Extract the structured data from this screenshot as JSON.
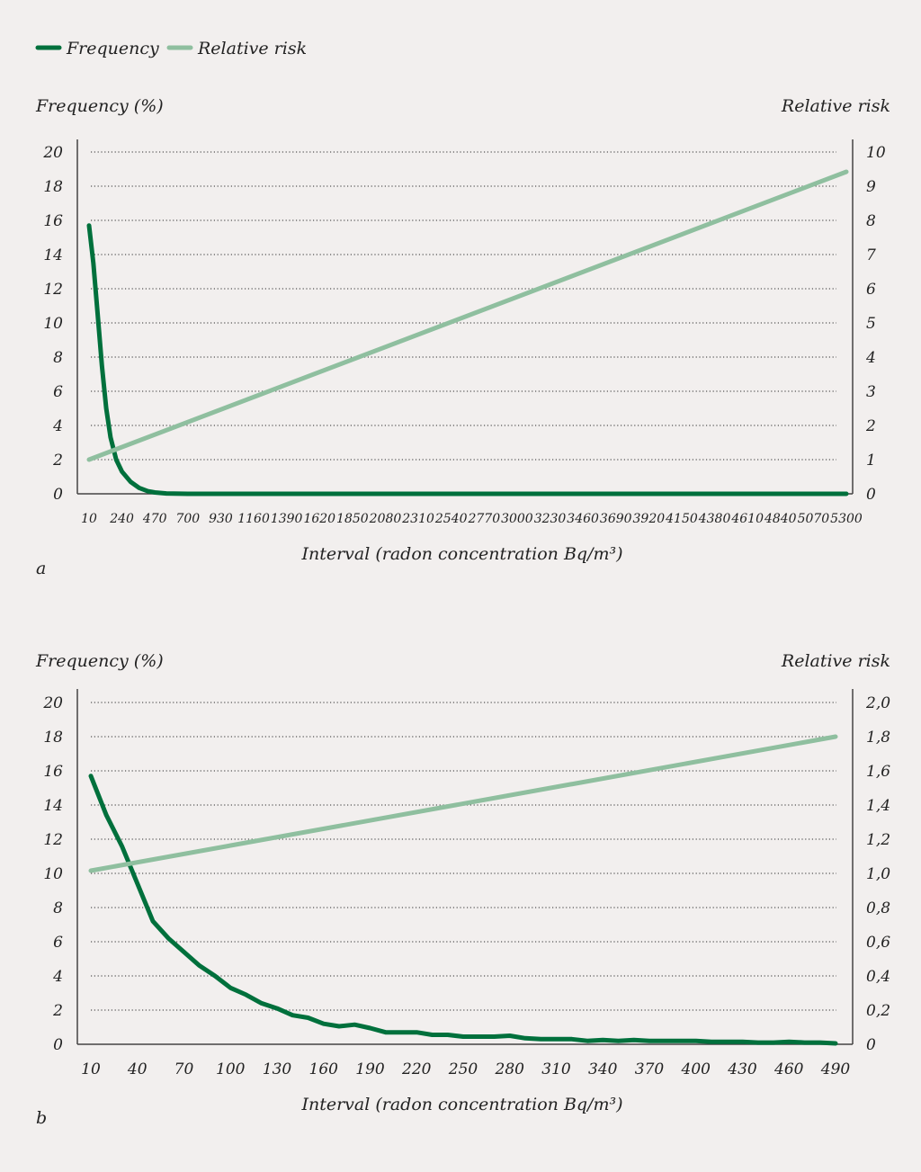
{
  "legend": [
    {
      "label": "Frequency",
      "color": "#00703c"
    },
    {
      "label": "Relative risk",
      "color": "#8fbf9f"
    }
  ],
  "chart_data": [
    {
      "type": "line",
      "panel_label": "a",
      "xlabel": "Interval (radon concentration Bq/m³)",
      "ylabel_left": "Frequency (%)",
      "ylabel_right": "Relative risk",
      "x_ticks": [
        10,
        240,
        470,
        700,
        930,
        1160,
        1390,
        1620,
        1850,
        2080,
        2310,
        2540,
        2770,
        3000,
        3230,
        3460,
        3690,
        3920,
        4150,
        4380,
        4610,
        4840,
        5070,
        5300
      ],
      "xlim": [
        10,
        5300
      ],
      "y_left_ticks": [
        "0",
        "2",
        "4",
        "6",
        "8",
        "10",
        "12",
        "14",
        "16",
        "18",
        "20"
      ],
      "y_left_lim": [
        0,
        20
      ],
      "y_right_ticks": [
        "0",
        "1",
        "2",
        "3",
        "4",
        "5",
        "6",
        "7",
        "8",
        "9",
        "10"
      ],
      "y_right_lim": [
        0,
        10
      ],
      "grid": true,
      "legend_position": "top-left",
      "series": [
        {
          "name": "Frequency",
          "axis": "left",
          "color": "#00703c",
          "x": [
            10,
            40,
            70,
            100,
            130,
            160,
            200,
            240,
            300,
            360,
            420,
            470,
            550,
            700,
            5300
          ],
          "y": [
            15.7,
            13.5,
            10.5,
            7.5,
            5.0,
            3.3,
            2.0,
            1.3,
            0.7,
            0.35,
            0.15,
            0.08,
            0.02,
            0,
            0
          ]
        },
        {
          "name": "Relative risk",
          "axis": "right",
          "color": "#8fbf9f",
          "x": [
            10,
            5300
          ],
          "y": [
            1.0,
            9.42
          ]
        }
      ]
    },
    {
      "type": "line",
      "panel_label": "b",
      "xlabel": "Interval (radon concentration Bq/m³)",
      "ylabel_left": "Frequency (%)",
      "ylabel_right": "Relative risk",
      "x_ticks": [
        10,
        40,
        70,
        100,
        130,
        160,
        190,
        220,
        250,
        280,
        310,
        340,
        370,
        400,
        430,
        460,
        490
      ],
      "xlim": [
        10,
        490
      ],
      "y_left_ticks": [
        "0",
        "2",
        "4",
        "6",
        "8",
        "10",
        "12",
        "14",
        "16",
        "18",
        "20"
      ],
      "y_left_lim": [
        0,
        20
      ],
      "y_right_ticks": [
        "0",
        "0,2",
        "0,4",
        "0,6",
        "0,8",
        "1,0",
        "1,2",
        "1,4",
        "1,6",
        "1,8",
        "2,0"
      ],
      "y_right_lim": [
        0,
        2
      ],
      "grid": true,
      "series": [
        {
          "name": "Frequency",
          "axis": "left",
          "color": "#00703c",
          "x": [
            10,
            20,
            30,
            40,
            50,
            60,
            70,
            80,
            90,
            100,
            110,
            120,
            130,
            140,
            150,
            160,
            170,
            180,
            190,
            200,
            210,
            220,
            230,
            240,
            250,
            260,
            270,
            280,
            290,
            300,
            310,
            320,
            330,
            340,
            350,
            360,
            370,
            380,
            390,
            400,
            410,
            420,
            430,
            440,
            450,
            460,
            470,
            480,
            490
          ],
          "y": [
            15.7,
            13.4,
            11.6,
            9.4,
            7.2,
            6.2,
            5.4,
            4.6,
            4.0,
            3.3,
            2.9,
            2.4,
            2.1,
            1.7,
            1.55,
            1.2,
            1.05,
            1.15,
            0.95,
            0.7,
            0.7,
            0.7,
            0.55,
            0.55,
            0.45,
            0.45,
            0.45,
            0.5,
            0.35,
            0.3,
            0.3,
            0.3,
            0.2,
            0.25,
            0.2,
            0.25,
            0.2,
            0.2,
            0.2,
            0.2,
            0.15,
            0.15,
            0.15,
            0.1,
            0.1,
            0.15,
            0.1,
            0.1,
            0.05
          ]
        },
        {
          "name": "Relative risk",
          "axis": "right",
          "color": "#8fbf9f",
          "x": [
            10,
            490
          ],
          "y": [
            1.016,
            1.8
          ]
        }
      ]
    }
  ]
}
